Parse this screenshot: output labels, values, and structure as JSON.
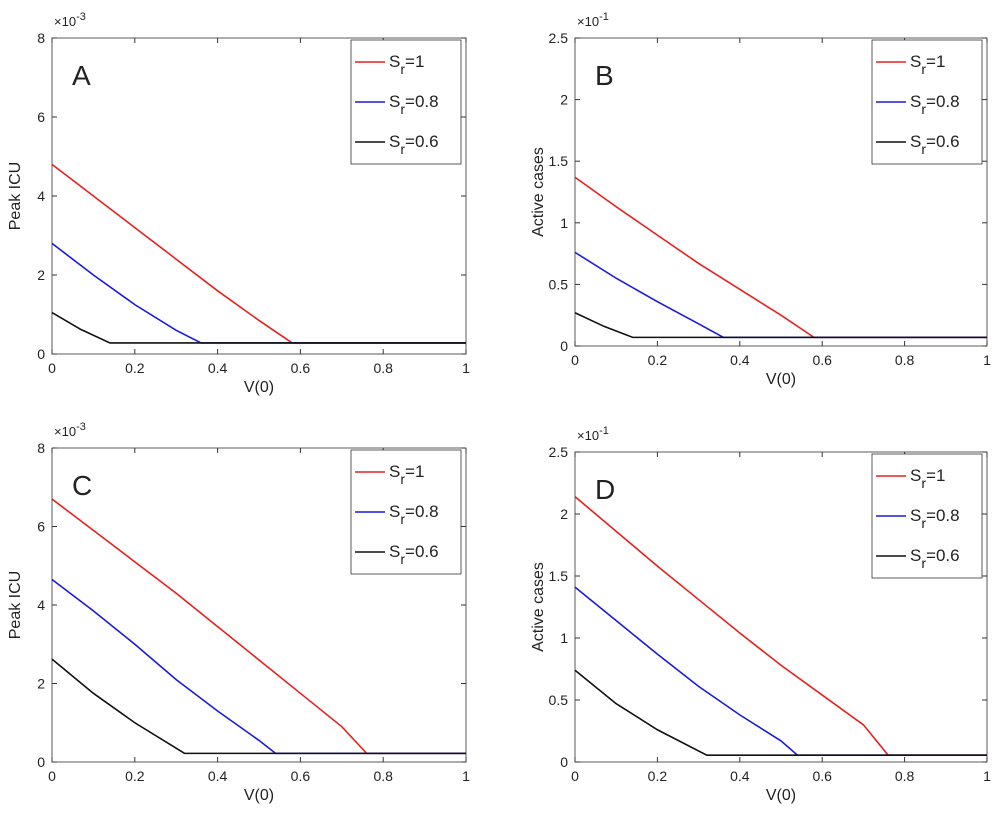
{
  "chart_data": [
    {
      "type": "line",
      "label": "A",
      "xlabel": "V(0)",
      "ylabel": "Peak ICU",
      "y_multiplier_base": "×10",
      "y_multiplier_exp": "-3",
      "xlim": [
        0,
        1
      ],
      "xticks": [
        0,
        0.2,
        0.4,
        0.6,
        0.8,
        1
      ],
      "ylim": [
        0,
        8
      ],
      "yticks": [
        0,
        2,
        4,
        6,
        8
      ],
      "legend": "upper-right",
      "series": [
        {
          "name_base": "S",
          "name_sub": "r",
          "name_rest": "=1",
          "color": "#e8201c",
          "x": [
            0,
            0.1,
            0.2,
            0.3,
            0.4,
            0.5,
            0.58,
            1
          ],
          "values": [
            4.8,
            4.0,
            3.2,
            2.4,
            1.6,
            0.85,
            0.28,
            0.28
          ]
        },
        {
          "name_base": "S",
          "name_sub": "r",
          "name_rest": "=0.8",
          "color": "#1a1adf",
          "x": [
            0,
            0.1,
            0.2,
            0.3,
            0.36,
            1
          ],
          "values": [
            2.8,
            2.0,
            1.25,
            0.6,
            0.28,
            0.28
          ]
        },
        {
          "name_base": "S",
          "name_sub": "r",
          "name_rest": "=0.6",
          "color": "#111111",
          "x": [
            0,
            0.07,
            0.14,
            1
          ],
          "values": [
            1.05,
            0.62,
            0.28,
            0.28
          ]
        }
      ]
    },
    {
      "type": "line",
      "label": "B",
      "xlabel": "V(0)",
      "ylabel": "Active cases",
      "y_multiplier_base": "×10",
      "y_multiplier_exp": "-1",
      "xlim": [
        0,
        1
      ],
      "xticks": [
        0,
        0.2,
        0.4,
        0.6,
        0.8,
        1
      ],
      "ylim": [
        0,
        2.5
      ],
      "yticks": [
        0,
        0.5,
        1,
        1.5,
        2,
        2.5
      ],
      "legend": "upper-right",
      "series": [
        {
          "name_base": "S",
          "name_sub": "r",
          "name_rest": "=1",
          "color": "#e8201c",
          "x": [
            0,
            0.1,
            0.2,
            0.3,
            0.4,
            0.5,
            0.58,
            1
          ],
          "values": [
            1.37,
            1.13,
            0.9,
            0.67,
            0.46,
            0.25,
            0.07,
            0.07
          ]
        },
        {
          "name_base": "S",
          "name_sub": "r",
          "name_rest": "=0.8",
          "color": "#1a1adf",
          "x": [
            0,
            0.1,
            0.2,
            0.3,
            0.36,
            1
          ],
          "values": [
            0.76,
            0.55,
            0.36,
            0.18,
            0.07,
            0.07
          ]
        },
        {
          "name_base": "S",
          "name_sub": "r",
          "name_rest": "=0.6",
          "color": "#111111",
          "x": [
            0,
            0.07,
            0.14,
            1
          ],
          "values": [
            0.27,
            0.16,
            0.07,
            0.07
          ]
        }
      ]
    },
    {
      "type": "line",
      "label": "C",
      "xlabel": "V(0)",
      "ylabel": "Peak ICU",
      "y_multiplier_base": "×10",
      "y_multiplier_exp": "-3",
      "xlim": [
        0,
        1
      ],
      "xticks": [
        0,
        0.2,
        0.4,
        0.6,
        0.8,
        1
      ],
      "ylim": [
        0,
        8
      ],
      "yticks": [
        0,
        2,
        4,
        6,
        8
      ],
      "legend": "upper-right",
      "series": [
        {
          "name_base": "S",
          "name_sub": "r",
          "name_rest": "=1",
          "color": "#e8201c",
          "x": [
            0,
            0.1,
            0.2,
            0.3,
            0.4,
            0.5,
            0.6,
            0.7,
            0.76,
            1
          ],
          "values": [
            6.7,
            5.9,
            5.1,
            4.3,
            3.45,
            2.6,
            1.75,
            0.9,
            0.22,
            0.22
          ]
        },
        {
          "name_base": "S",
          "name_sub": "r",
          "name_rest": "=0.8",
          "color": "#1a1adf",
          "x": [
            0,
            0.1,
            0.2,
            0.3,
            0.4,
            0.5,
            0.54,
            1
          ],
          "values": [
            4.65,
            3.85,
            3.0,
            2.1,
            1.3,
            0.55,
            0.22,
            0.22
          ]
        },
        {
          "name_base": "S",
          "name_sub": "r",
          "name_rest": "=0.6",
          "color": "#111111",
          "x": [
            0,
            0.1,
            0.2,
            0.32,
            1
          ],
          "values": [
            2.62,
            1.75,
            1.0,
            0.22,
            0.22
          ]
        }
      ]
    },
    {
      "type": "line",
      "label": "D",
      "xlabel": "V(0)",
      "ylabel": "Active cases",
      "y_multiplier_base": "×10",
      "y_multiplier_exp": "-1",
      "xlim": [
        0,
        1
      ],
      "xticks": [
        0,
        0.2,
        0.4,
        0.6,
        0.8,
        1
      ],
      "ylim": [
        0,
        2.5
      ],
      "yticks": [
        0,
        0.5,
        1,
        1.5,
        2,
        2.5
      ],
      "legend": "upper-right",
      "series": [
        {
          "name_base": "S",
          "name_sub": "r",
          "name_rest": "=1",
          "color": "#e8201c",
          "x": [
            0,
            0.1,
            0.2,
            0.3,
            0.4,
            0.5,
            0.6,
            0.7,
            0.76,
            1
          ],
          "values": [
            2.14,
            1.86,
            1.58,
            1.31,
            1.04,
            0.78,
            0.54,
            0.3,
            0.055,
            0.055
          ]
        },
        {
          "name_base": "S",
          "name_sub": "r",
          "name_rest": "=0.8",
          "color": "#1a1adf",
          "x": [
            0,
            0.1,
            0.2,
            0.3,
            0.4,
            0.5,
            0.54,
            1
          ],
          "values": [
            1.41,
            1.14,
            0.87,
            0.61,
            0.38,
            0.17,
            0.055,
            0.055
          ]
        },
        {
          "name_base": "S",
          "name_sub": "r",
          "name_rest": "=0.6",
          "color": "#111111",
          "x": [
            0,
            0.1,
            0.2,
            0.32,
            1
          ],
          "values": [
            0.74,
            0.47,
            0.26,
            0.055,
            0.055
          ]
        }
      ]
    }
  ]
}
